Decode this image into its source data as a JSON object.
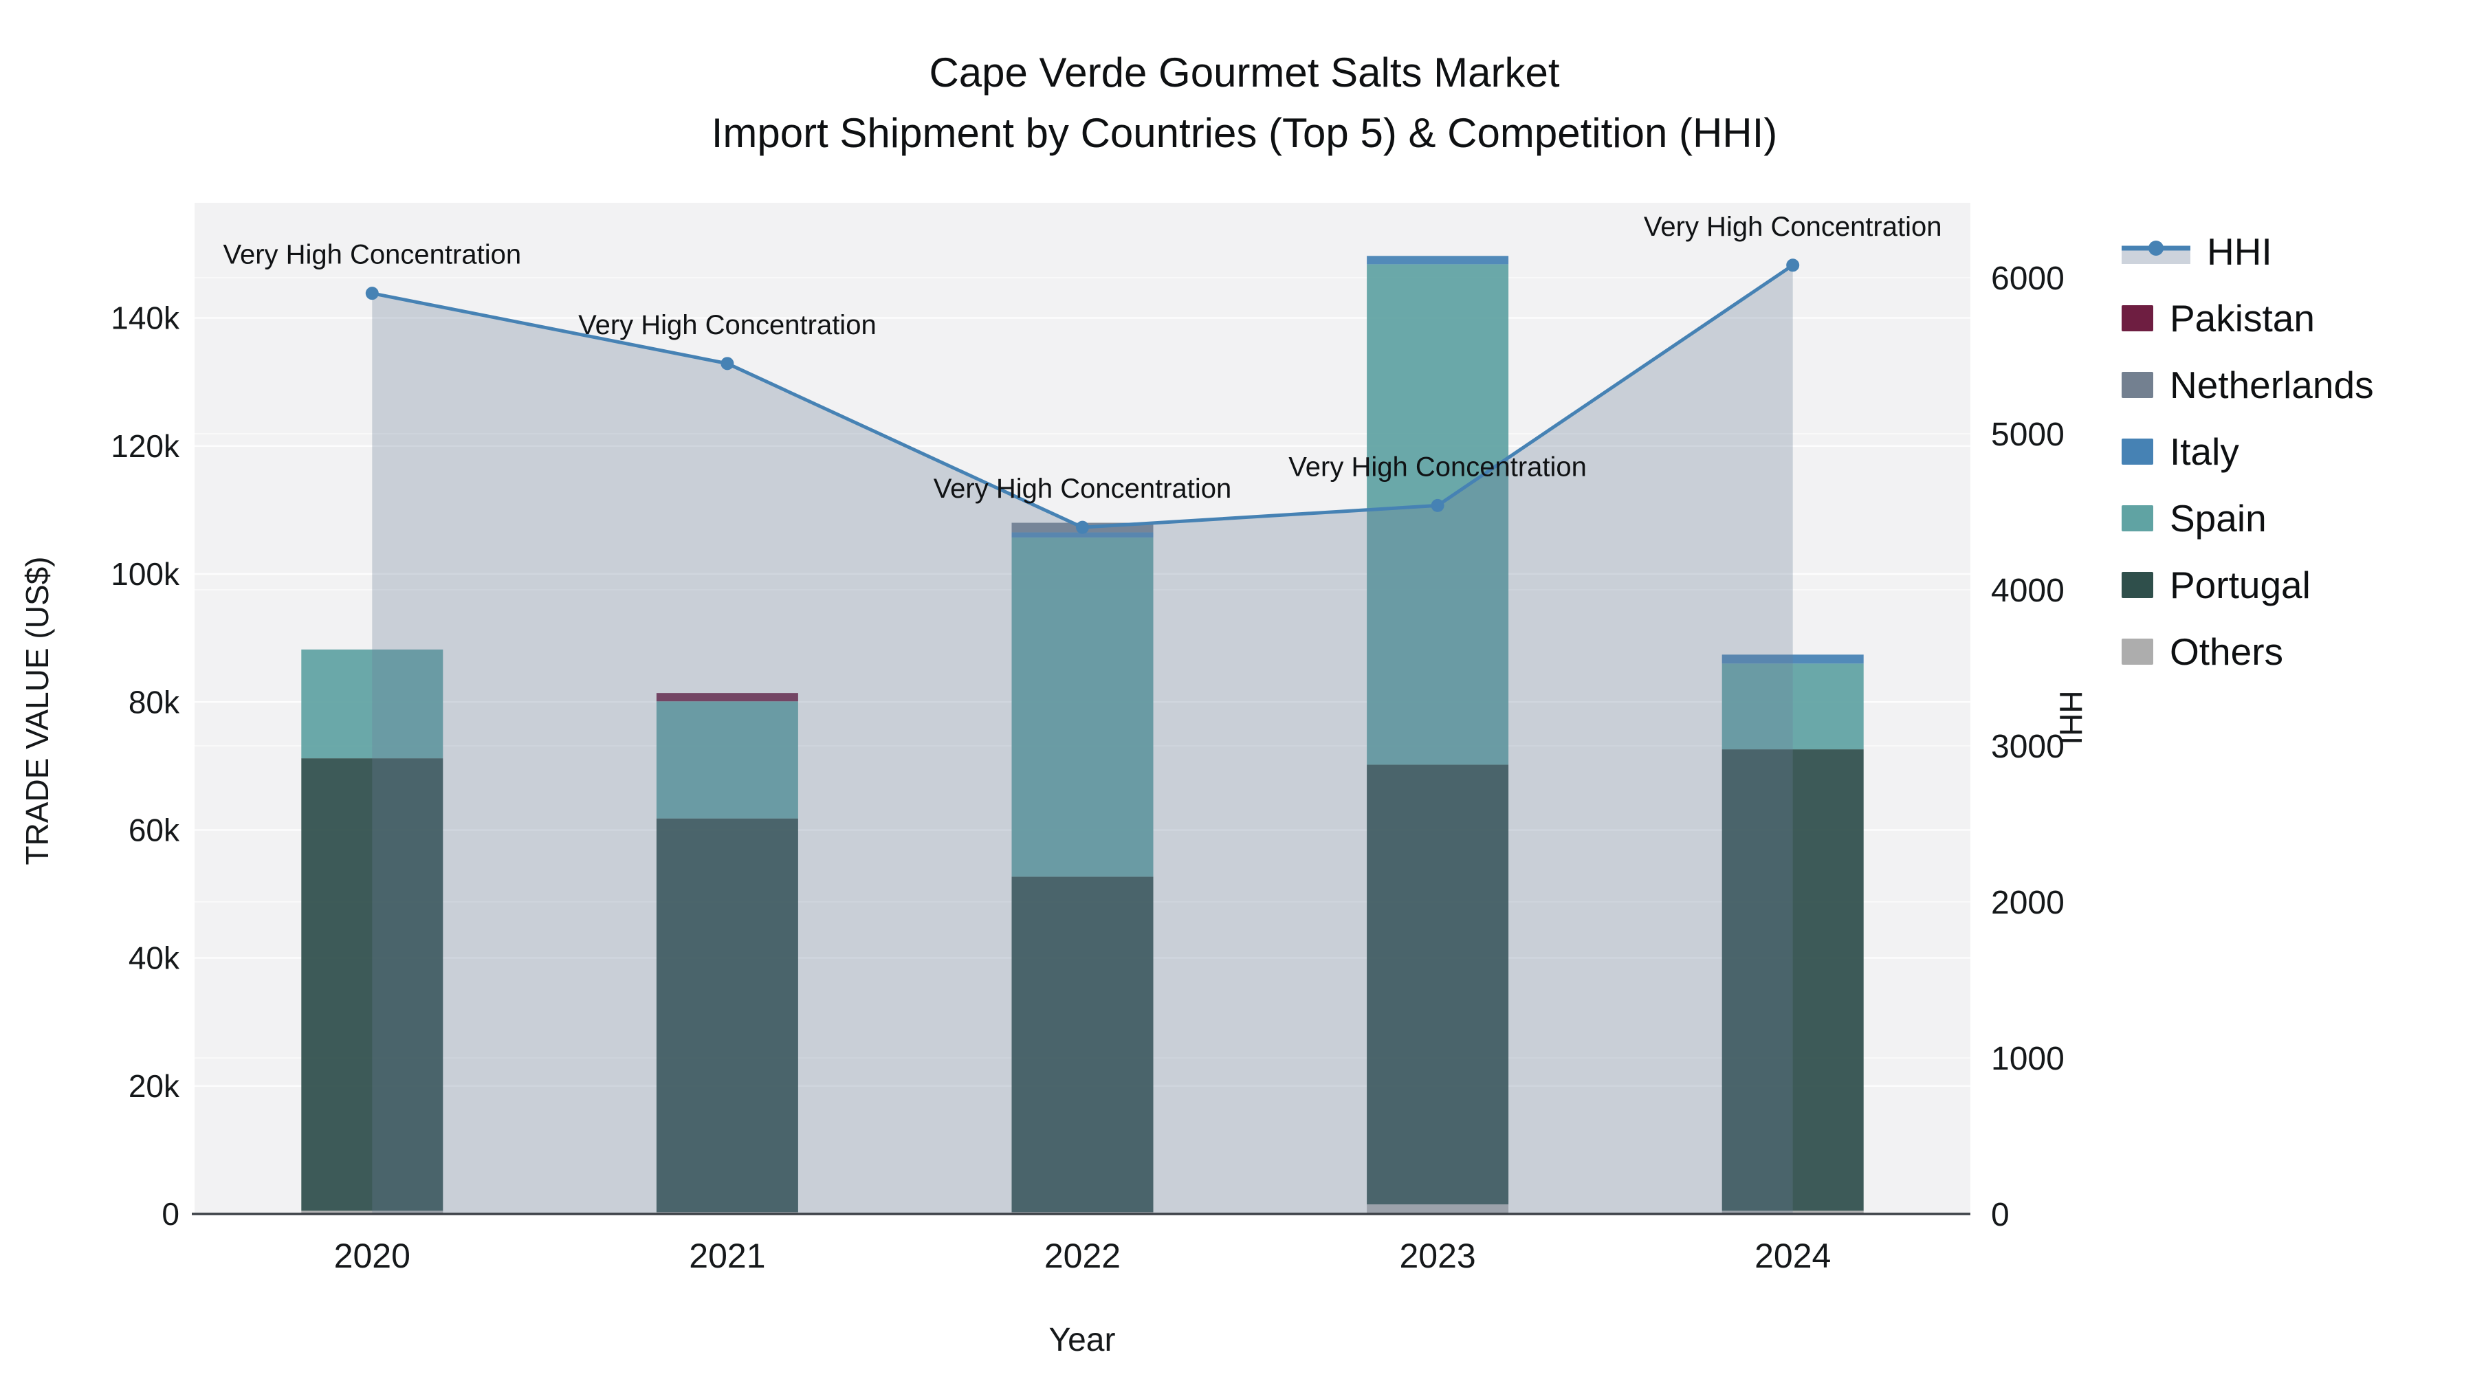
{
  "title": {
    "line1": "Cape Verde Gourmet Salts Market",
    "line2": "Import Shipment by Countries (Top 5) & Competition (HHI)"
  },
  "colors": {
    "plot_background": "#F2F2F3",
    "gridline": "#FFFFFF",
    "axis_line": "#3C4147",
    "text": "#15181a",
    "annotation_text": "#101214",
    "hhi_line": "#4682B4",
    "hhi_area_fill": "rgba(105,125,153,0.30)",
    "legend_hhi_band": "#CDD3DC",
    "pakistan": "#6E1E41",
    "netherlands": "#738090",
    "italy": "#4682B4",
    "spain": "#60A3A3",
    "portugal": "#2F4F4B",
    "others": "#ADADAD"
  },
  "chart_data": {
    "type": "bar",
    "subtype": "stacked-bars-with-line",
    "x": [
      "2020",
      "2021",
      "2022",
      "2023",
      "2024"
    ],
    "series": [
      {
        "name": "Others",
        "axis": "left",
        "color_key": "others",
        "values": [
          500,
          300,
          300,
          1500,
          500
        ]
      },
      {
        "name": "Portugal",
        "axis": "left",
        "color_key": "portugal",
        "values": [
          70700,
          61500,
          52400,
          68700,
          72100
        ]
      },
      {
        "name": "Spain",
        "axis": "left",
        "color_key": "spain",
        "values": [
          17000,
          18300,
          53000,
          78200,
          13400
        ]
      },
      {
        "name": "Italy",
        "axis": "left",
        "color_key": "italy",
        "values": [
          0,
          0,
          800,
          1300,
          1400
        ]
      },
      {
        "name": "Netherlands",
        "axis": "left",
        "color_key": "netherlands",
        "values": [
          0,
          0,
          1500,
          0,
          0
        ]
      },
      {
        "name": "Pakistan",
        "axis": "left",
        "color_key": "pakistan",
        "values": [
          0,
          1300,
          0,
          0,
          0
        ]
      }
    ],
    "line_series": {
      "name": "HHI",
      "axis": "right",
      "color_key": "hhi_line",
      "values": [
        5900,
        5450,
        4400,
        4540,
        6080
      ],
      "area_fill": true
    },
    "annotations": [
      {
        "x_index": 0,
        "text": "Very High Concentration"
      },
      {
        "x_index": 1,
        "text": "Very High Concentration"
      },
      {
        "x_index": 2,
        "text": "Very High Concentration"
      },
      {
        "x_index": 3,
        "text": "Very High Concentration"
      },
      {
        "x_index": 4,
        "text": "Very High Concentration"
      }
    ],
    "xlabel": "Year",
    "ylabel_left": "TRADE VALUE (US$)",
    "ylabel_right": "HHI",
    "ylim_left": [
      0,
      158000
    ],
    "ylim_right": [
      0,
      6480
    ],
    "left_ticks": [
      {
        "label": "0",
        "value": 0
      },
      {
        "label": "20k",
        "value": 20000
      },
      {
        "label": "40k",
        "value": 40000
      },
      {
        "label": "60k",
        "value": 60000
      },
      {
        "label": "80k",
        "value": 80000
      },
      {
        "label": "100k",
        "value": 100000
      },
      {
        "label": "120k",
        "value": 120000
      },
      {
        "label": "140k",
        "value": 140000
      }
    ],
    "right_ticks": [
      {
        "label": "0",
        "value": 0
      },
      {
        "label": "1000",
        "value": 1000
      },
      {
        "label": "2000",
        "value": 2000
      },
      {
        "label": "3000",
        "value": 3000
      },
      {
        "label": "4000",
        "value": 4000
      },
      {
        "label": "5000",
        "value": 5000
      },
      {
        "label": "6000",
        "value": 6000
      }
    ],
    "grid": true,
    "legend_position": "right"
  },
  "legend": {
    "items": [
      {
        "label": "HHI",
        "type": "line-area",
        "color_key": "hhi_line"
      },
      {
        "label": "Pakistan",
        "type": "swatch",
        "color_key": "pakistan"
      },
      {
        "label": "Netherlands",
        "type": "swatch",
        "color_key": "netherlands"
      },
      {
        "label": "Italy",
        "type": "swatch",
        "color_key": "italy"
      },
      {
        "label": "Spain",
        "type": "swatch",
        "color_key": "spain"
      },
      {
        "label": "Portugal",
        "type": "swatch",
        "color_key": "portugal"
      },
      {
        "label": "Others",
        "type": "swatch",
        "color_key": "others"
      }
    ]
  }
}
